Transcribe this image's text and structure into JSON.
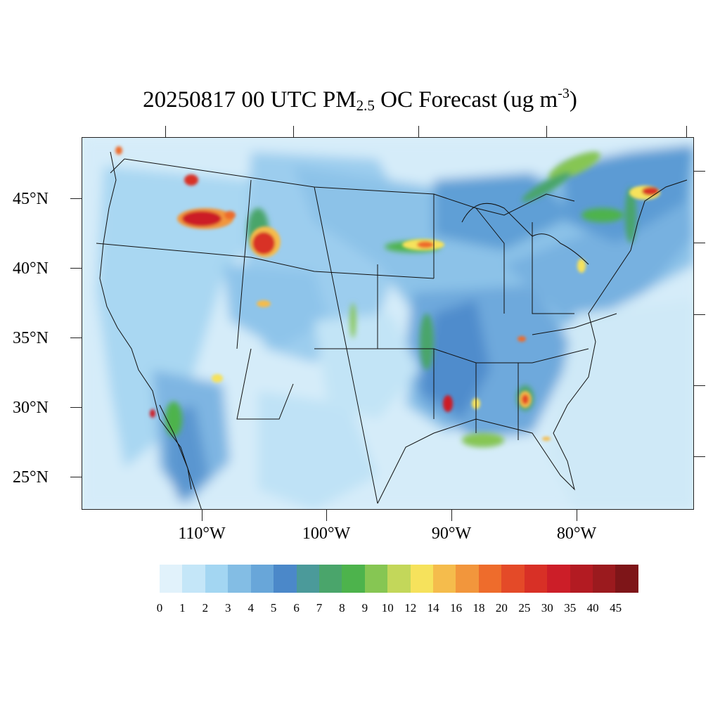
{
  "title": {
    "prefix": "20250817 00 UTC PM",
    "subscript": "2.5",
    "middle": " OC Forecast (ug m",
    "superscript": "-3",
    "suffix": ")"
  },
  "map": {
    "lat_labels": [
      "45°N",
      "40°N",
      "35°N",
      "30°N",
      "25°N"
    ],
    "lon_labels": [
      "110°W",
      "100°W",
      "90°W",
      "80°W"
    ],
    "background_color": "#dcf0fa",
    "border_color": "#222222"
  },
  "legend": {
    "colors": [
      "#e1f2fb",
      "#c4e6f8",
      "#a3d6f2",
      "#83bde4",
      "#68a6d9",
      "#4b88c9",
      "#4b9a9a",
      "#4aa56b",
      "#4db34c",
      "#86c653",
      "#c3d75a",
      "#f6e25c",
      "#f5bc4c",
      "#f2963c",
      "#ee6c2c",
      "#e44a28",
      "#d83026",
      "#cc1e28",
      "#b31b22",
      "#9b1a1e",
      "#7e1518"
    ],
    "labels": [
      "0",
      "1",
      "2",
      "3",
      "4",
      "5",
      "6",
      "7",
      "8",
      "9",
      "10",
      "12",
      "14",
      "16",
      "18",
      "20",
      "25",
      "30",
      "35",
      "40",
      "45"
    ]
  },
  "hotspots": [
    {
      "name": "oregon-fire",
      "level": 45
    },
    {
      "name": "idaho-fire",
      "level": 45
    },
    {
      "name": "montana-fire",
      "level": 35
    },
    {
      "name": "wyoming-fire",
      "level": 40
    },
    {
      "name": "minnesota-plume",
      "level": 20
    },
    {
      "name": "maine-plume",
      "level": 35
    },
    {
      "name": "louisiana-fire",
      "level": 40
    },
    {
      "name": "georgia-fire",
      "level": 25
    },
    {
      "name": "sonora-fire",
      "level": 40
    }
  ]
}
